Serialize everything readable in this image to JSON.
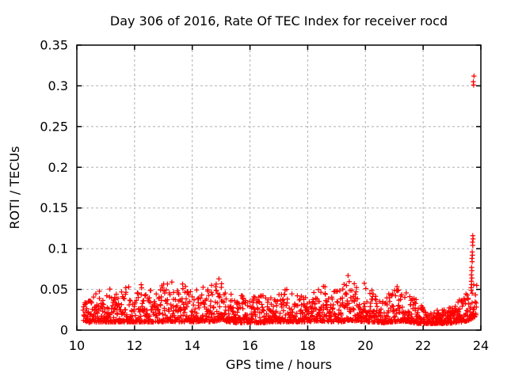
{
  "chart_data": {
    "type": "scatter",
    "title": "Day 306 of 2016, Rate Of TEC Index for receiver rocd",
    "xlabel": "GPS time / hours",
    "ylabel": "ROTI / TECUs",
    "xlim": [
      10,
      24
    ],
    "ylim": [
      0,
      0.35
    ],
    "xticks": [
      10,
      12,
      14,
      16,
      18,
      20,
      22,
      24
    ],
    "xtick_labels": [
      "10",
      "12",
      "14",
      "16",
      "18",
      "20",
      "22",
      "24"
    ],
    "yticks": [
      0,
      0.05,
      0.1,
      0.15,
      0.2,
      0.25,
      0.3,
      0.35
    ],
    "ytick_labels": [
      "0",
      "0.05",
      "0.1",
      "0.15",
      "0.2",
      "0.25",
      "0.3",
      "0.35"
    ],
    "grid": true,
    "legend_position": "none",
    "series_name": "ROTI",
    "marker": {
      "glyph": "plus",
      "color": "#ff0000",
      "size": 7,
      "stroke_width": 1.25
    },
    "band": {
      "x_start": 10.22,
      "x_end": 23.86,
      "points_per_hour": 120,
      "seed": 1234,
      "power": 2.3,
      "x_jitter": 0.008,
      "overshoot_prob": 0.01,
      "envelope": [
        [
          10.22,
          0.012,
          0.04
        ],
        [
          10.45,
          0.009,
          0.036
        ],
        [
          10.7,
          0.01,
          0.048
        ],
        [
          10.95,
          0.01,
          0.042
        ],
        [
          11.15,
          0.01,
          0.055
        ],
        [
          11.4,
          0.01,
          0.044
        ],
        [
          11.65,
          0.01,
          0.056
        ],
        [
          11.9,
          0.01,
          0.046
        ],
        [
          12.15,
          0.01,
          0.058
        ],
        [
          12.45,
          0.01,
          0.046
        ],
        [
          12.7,
          0.01,
          0.043
        ],
        [
          12.95,
          0.01,
          0.056
        ],
        [
          13.25,
          0.011,
          0.063
        ],
        [
          13.5,
          0.01,
          0.048
        ],
        [
          13.75,
          0.01,
          0.056
        ],
        [
          14.05,
          0.01,
          0.047
        ],
        [
          14.35,
          0.011,
          0.057
        ],
        [
          14.6,
          0.01,
          0.048
        ],
        [
          14.95,
          0.012,
          0.066
        ],
        [
          15.25,
          0.01,
          0.046
        ],
        [
          15.55,
          0.009,
          0.041
        ],
        [
          15.85,
          0.009,
          0.045
        ],
        [
          16.15,
          0.009,
          0.04
        ],
        [
          16.45,
          0.009,
          0.044
        ],
        [
          16.75,
          0.01,
          0.041
        ],
        [
          17.05,
          0.01,
          0.046
        ],
        [
          17.35,
          0.01,
          0.052
        ],
        [
          17.65,
          0.01,
          0.043
        ],
        [
          17.95,
          0.01,
          0.048
        ],
        [
          18.25,
          0.011,
          0.051
        ],
        [
          18.55,
          0.011,
          0.057
        ],
        [
          18.85,
          0.01,
          0.045
        ],
        [
          19.15,
          0.01,
          0.051
        ],
        [
          19.45,
          0.012,
          0.065
        ],
        [
          19.75,
          0.011,
          0.054
        ],
        [
          20.0,
          0.01,
          0.057
        ],
        [
          20.3,
          0.01,
          0.047
        ],
        [
          20.6,
          0.009,
          0.039
        ],
        [
          20.9,
          0.01,
          0.047
        ],
        [
          21.2,
          0.011,
          0.053
        ],
        [
          21.5,
          0.01,
          0.049
        ],
        [
          21.8,
          0.008,
          0.034
        ],
        [
          22.1,
          0.008,
          0.025
        ],
        [
          22.45,
          0.008,
          0.023
        ],
        [
          22.8,
          0.008,
          0.026
        ],
        [
          23.1,
          0.009,
          0.03
        ],
        [
          23.35,
          0.01,
          0.04
        ],
        [
          23.6,
          0.012,
          0.05
        ],
        [
          23.78,
          0.016,
          0.062
        ],
        [
          23.86,
          0.018,
          0.055
        ]
      ],
      "spike_points": [
        [
          23.66,
          0.052
        ],
        [
          23.68,
          0.056
        ],
        [
          23.67,
          0.06
        ],
        [
          23.69,
          0.064
        ],
        [
          23.67,
          0.068
        ],
        [
          23.69,
          0.073
        ],
        [
          23.68,
          0.077
        ],
        [
          23.7,
          0.084
        ],
        [
          23.69,
          0.088
        ],
        [
          23.71,
          0.092
        ],
        [
          23.7,
          0.096
        ],
        [
          23.72,
          0.104
        ],
        [
          23.71,
          0.108
        ],
        [
          23.73,
          0.112
        ],
        [
          23.72,
          0.116
        ]
      ],
      "outliers": [
        [
          23.74,
          0.305
        ],
        [
          23.76,
          0.312
        ],
        [
          23.75,
          0.301
        ]
      ]
    }
  },
  "colors": {
    "background": "#ffffff",
    "frame": "#000000",
    "grid": "#b0b0b0",
    "marker": "#ff0000"
  }
}
